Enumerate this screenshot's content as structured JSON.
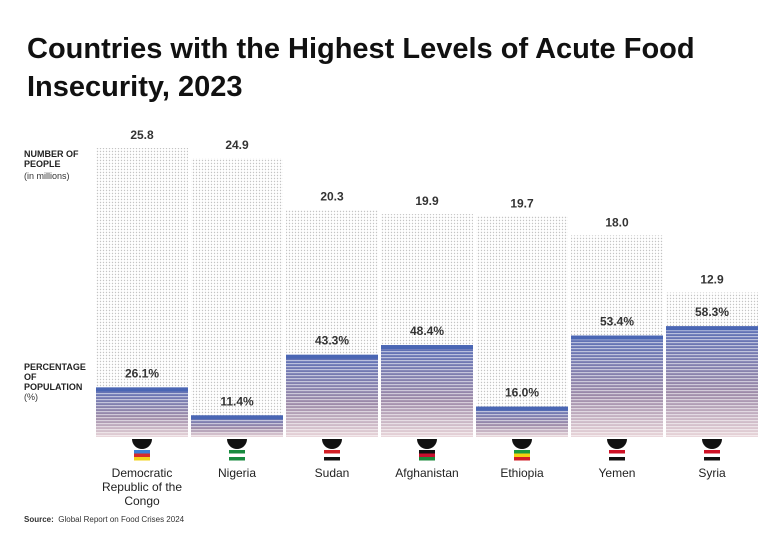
{
  "chart_data": {
    "type": "bar",
    "title": "Countries with the Highest Levels of Acute Food Insecurity, 2023",
    "categories": [
      "Democratic Republic of the Congo",
      "Nigeria",
      "Sudan",
      "Afghanistan",
      "Ethiopia",
      "Yemen",
      "Syria"
    ],
    "series": [
      {
        "name": "NUMBER OF PEOPLE",
        "subtitle": "(in millions)",
        "color": "#b9b9b9",
        "values": [
          25.8,
          24.9,
          20.3,
          19.9,
          19.7,
          18.0,
          12.9
        ],
        "value_labels": [
          "25.8",
          "24.9",
          "20.3",
          "19.9",
          "19.7",
          "18.0",
          "12.9"
        ]
      },
      {
        "name": "PERCENTAGE OF POPULATION",
        "subtitle": "(%)",
        "color": "#4a66b4",
        "values": [
          26.1,
          11.4,
          43.3,
          48.4,
          16.0,
          53.4,
          58.3
        ],
        "value_labels": [
          "26.1%",
          "11.4%",
          "43.3%",
          "48.4%",
          "16.0%",
          "53.4%",
          "58.3%"
        ]
      }
    ],
    "source": {
      "label": "Source:",
      "text": "Global Report on Food Crises 2024"
    }
  }
}
